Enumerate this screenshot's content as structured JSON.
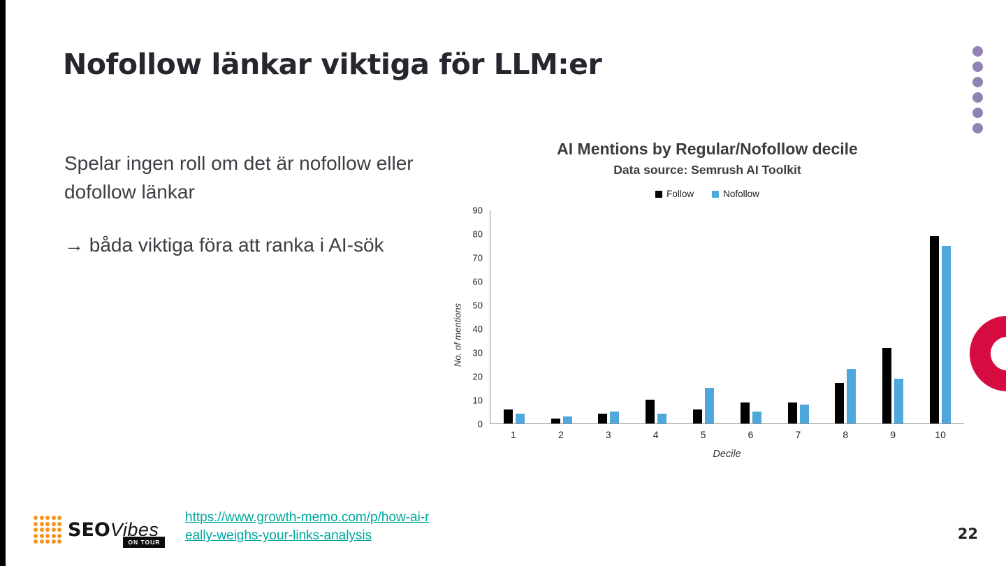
{
  "slide": {
    "title": "Nofollow länkar viktiga för LLM:er",
    "body": {
      "paragraph1": "Spelar ingen roll om det är nofollow eller dofollow länkar",
      "paragraph2": "→ båda viktiga föra att ranka i AI-sök"
    },
    "source_link": {
      "line1": "https://www.growth-memo.com/p/how-ai-r",
      "line2": "eally-weighs-your-links-analysis"
    },
    "page_number": "22"
  },
  "logo": {
    "seo": "SEO",
    "vibes": "Vibes",
    "badge": "ON TOUR"
  },
  "decor": {
    "accent_red": "#d60b3f",
    "dot_purple": "#9184b4",
    "logo_orange": "#f7941d",
    "link_teal": "#00a79d"
  },
  "chart_data": {
    "type": "bar",
    "title": "AI Mentions by Regular/Nofollow decile",
    "subtitle": "Data source: Semrush AI Toolkit",
    "categories": [
      "1",
      "2",
      "3",
      "4",
      "5",
      "6",
      "7",
      "8",
      "9",
      "10"
    ],
    "series": [
      {
        "name": "Follow",
        "color": "#000000",
        "values": [
          6,
          2,
          4,
          10,
          6,
          9,
          9,
          17,
          32,
          79
        ]
      },
      {
        "name": "Nofollow",
        "color": "#4fa8dc",
        "values": [
          4,
          3,
          5,
          4,
          15,
          5,
          8,
          23,
          19,
          75
        ]
      }
    ],
    "xlabel": "Decile",
    "ylabel": "No. of mentions",
    "ylim": [
      0,
      90
    ],
    "ytick_step": 10,
    "grid": false,
    "legend_position": "top"
  }
}
